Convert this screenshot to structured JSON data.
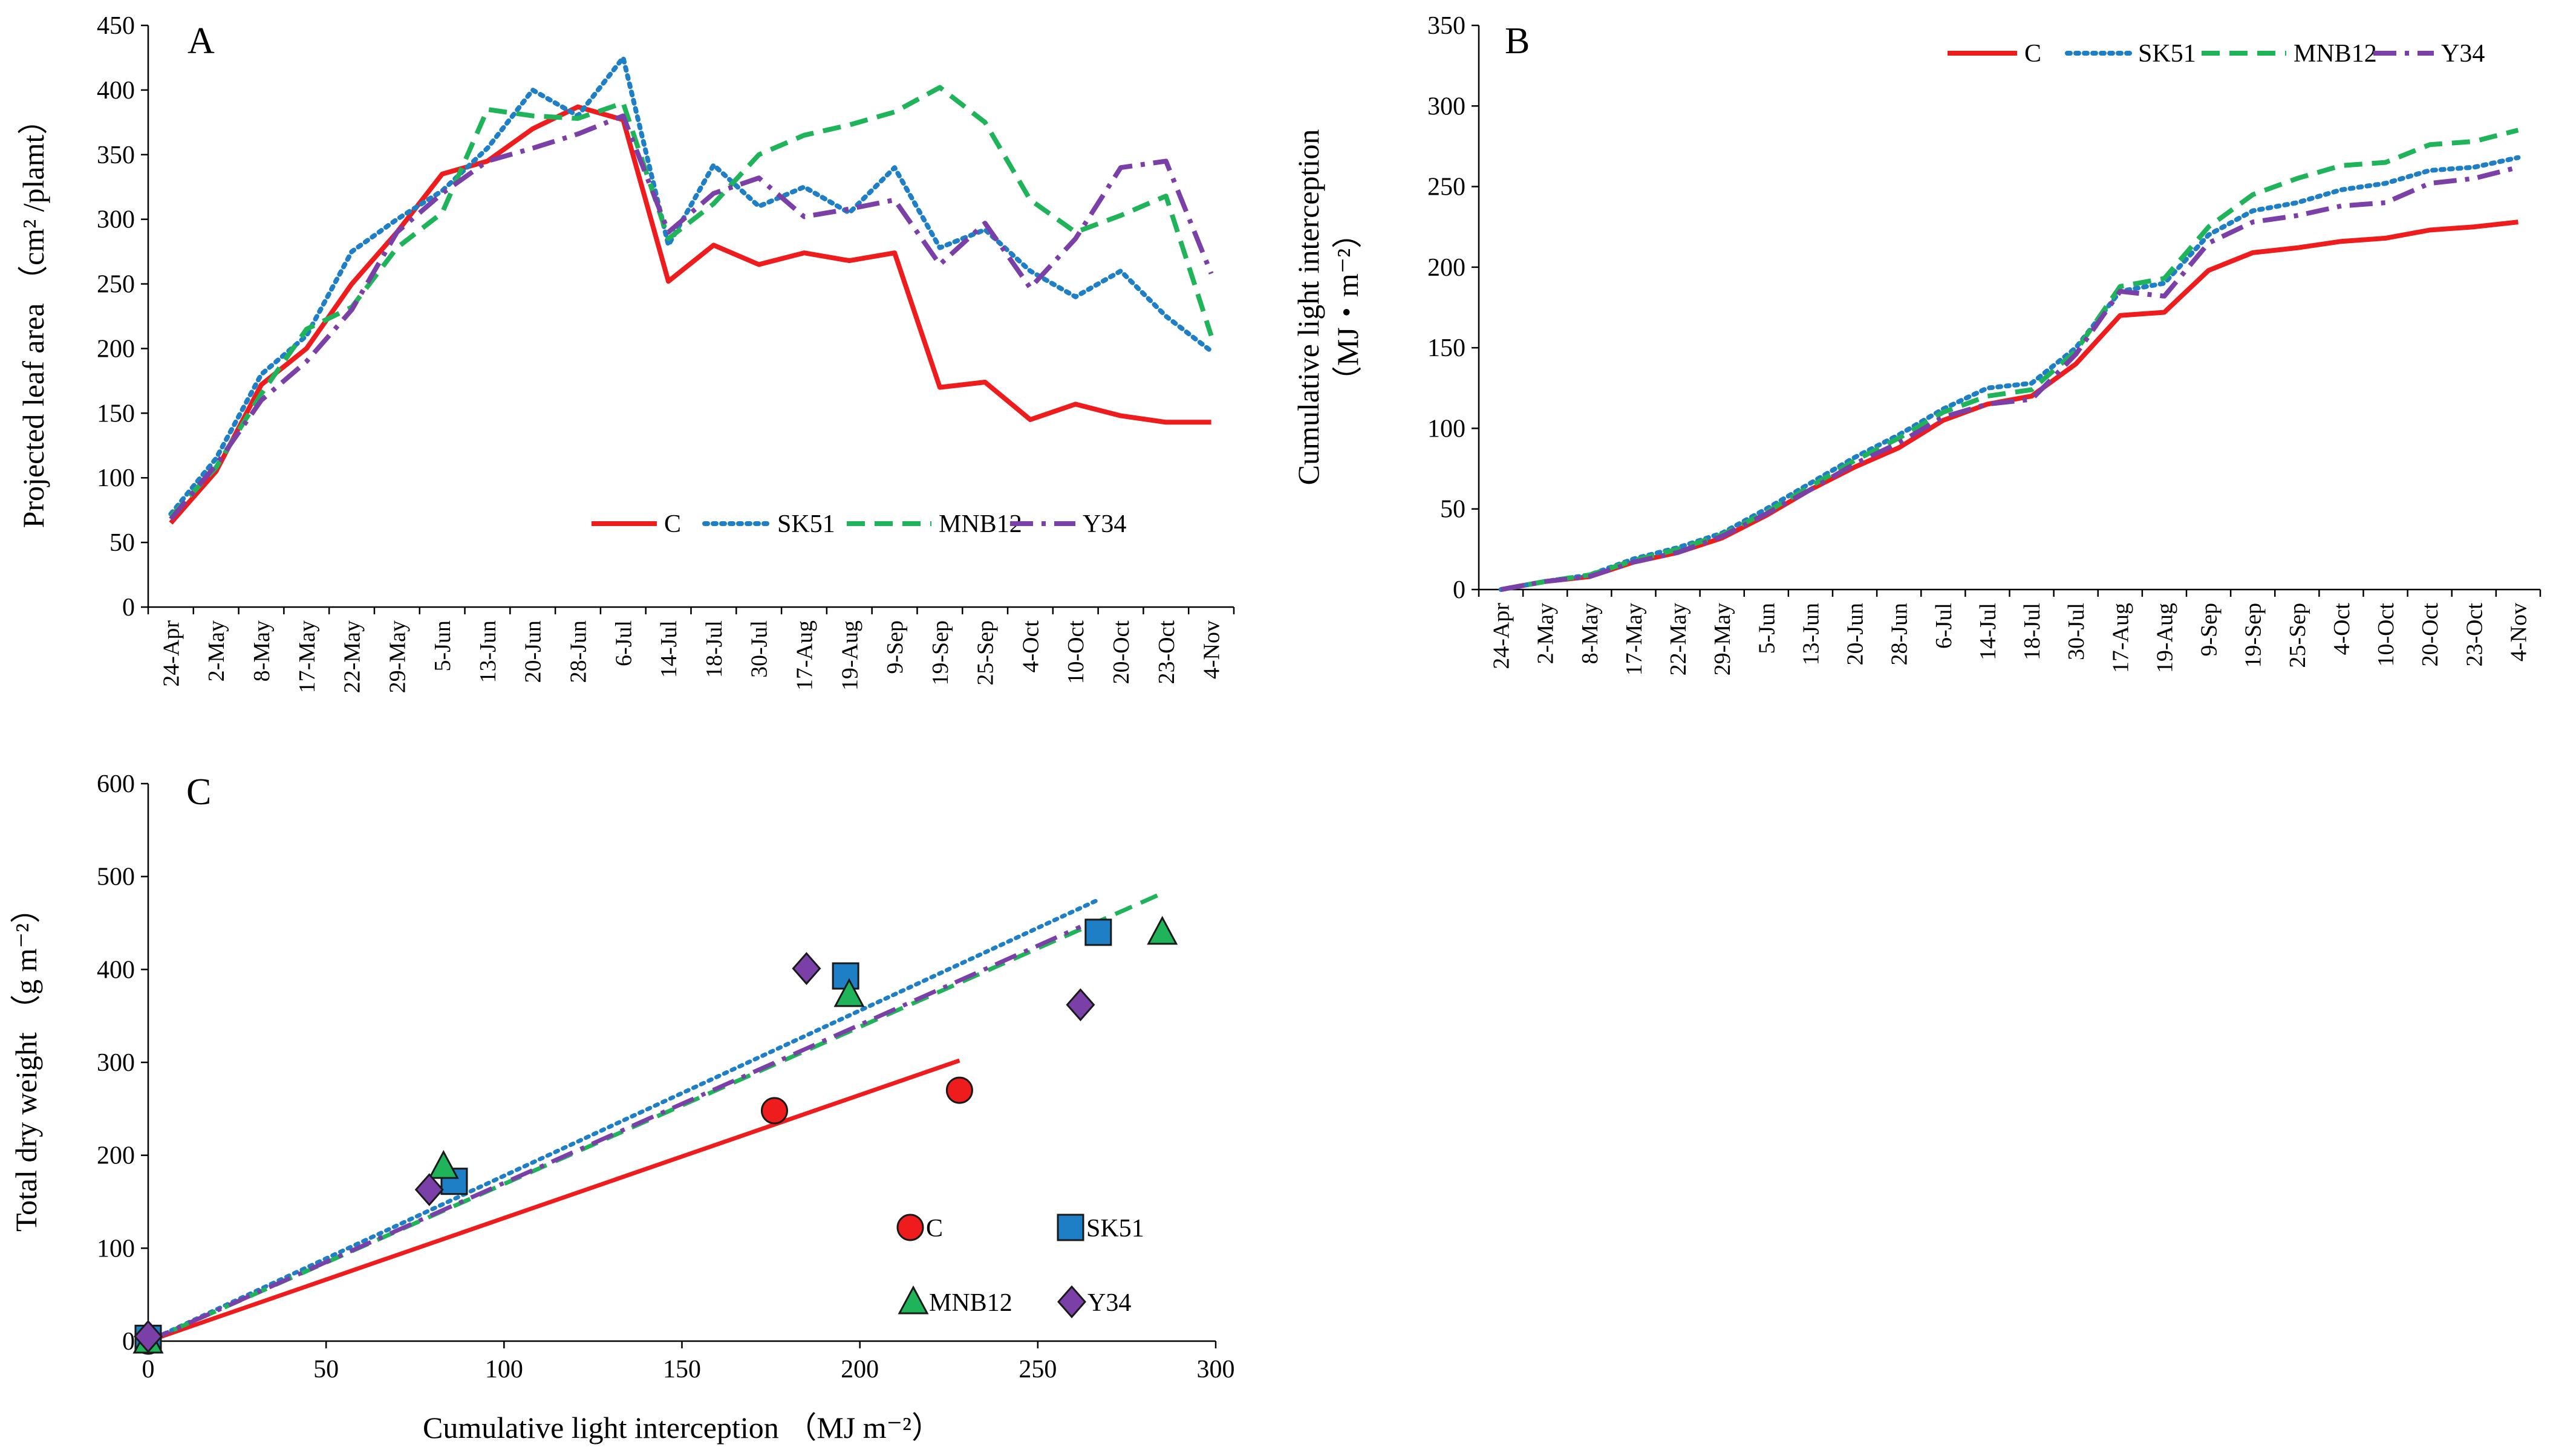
{
  "figure": {
    "colors": {
      "C": "#ee1c1c",
      "SK51": "#1f7fc6",
      "MNB12": "#1fb45a",
      "Y34": "#7b3fa8"
    }
  },
  "chart_data": [
    {
      "panel": "A",
      "type": "line",
      "title": "A",
      "xlabel": "",
      "ylabel": "Projected leaf area （cm² /plamt）",
      "ylim": [
        0,
        450
      ],
      "yticks": [
        0,
        50,
        100,
        150,
        200,
        250,
        300,
        350,
        400,
        450
      ],
      "categories": [
        "24-Apr",
        "2-May",
        "8-May",
        "17-May",
        "22-May",
        "29-May",
        "5-Jun",
        "13-Jun",
        "20-Jun",
        "28-Jun",
        "6-Jul",
        "14-Jul",
        "18-Jul",
        "30-Jul",
        "17-Aug",
        "19-Aug",
        "9-Sep",
        "19-Sep",
        "25-Sep",
        "4-Oct",
        "10-Oct",
        "20-Oct",
        "23-Oct",
        "4-Nov"
      ],
      "legend": "bottom-right",
      "series": [
        {
          "name": "C",
          "style": "solid",
          "values": [
            65,
            105,
            172,
            200,
            250,
            290,
            335,
            345,
            370,
            387,
            377,
            252,
            280,
            265,
            274,
            268,
            274,
            170,
            174,
            145,
            157,
            148,
            143,
            143
          ]
        },
        {
          "name": "SK51",
          "style": "dotted",
          "values": [
            72,
            115,
            180,
            210,
            275,
            300,
            322,
            355,
            400,
            380,
            425,
            280,
            342,
            310,
            325,
            305,
            340,
            278,
            292,
            260,
            240,
            260,
            225,
            198
          ]
        },
        {
          "name": "MNB12",
          "style": "dashed",
          "values": [
            70,
            108,
            165,
            215,
            232,
            278,
            305,
            385,
            380,
            378,
            390,
            285,
            312,
            350,
            365,
            373,
            383,
            402,
            375,
            315,
            290,
            303,
            318,
            210
          ]
        },
        {
          "name": "Y34",
          "style": "dashdot",
          "values": [
            68,
            110,
            160,
            190,
            230,
            290,
            320,
            345,
            355,
            366,
            380,
            290,
            320,
            332,
            302,
            308,
            315,
            265,
            297,
            247,
            285,
            340,
            345,
            258
          ]
        }
      ]
    },
    {
      "panel": "B",
      "type": "line",
      "title": "B",
      "xlabel": "",
      "ylabel_line1": "Cumulative light interception",
      "ylabel_line2": "（MJ・m⁻²）",
      "ylim": [
        0,
        350
      ],
      "yticks": [
        0,
        50,
        100,
        150,
        200,
        250,
        300,
        350
      ],
      "categories": [
        "24-Apr",
        "2-May",
        "8-May",
        "17-May",
        "22-May",
        "29-May",
        "5-Jun",
        "13-Jun",
        "20-Jun",
        "28-Jun",
        "6-Jul",
        "14-Jul",
        "18-Jul",
        "30-Jul",
        "17-Aug",
        "19-Aug",
        "9-Sep",
        "19-Sep",
        "25-Sep",
        "4-Oct",
        "10-Oct",
        "20-Oct",
        "23-Oct",
        "4-Nov"
      ],
      "legend": "top-right",
      "series": [
        {
          "name": "C",
          "style": "solid",
          "values": [
            0,
            5,
            8,
            17,
            23,
            32,
            46,
            62,
            76,
            88,
            105,
            115,
            120,
            140,
            170,
            172,
            198,
            209,
            212,
            216,
            218,
            223,
            225,
            228
          ]
        },
        {
          "name": "SK51",
          "style": "dotted",
          "values": [
            0,
            5,
            9,
            19,
            26,
            35,
            50,
            66,
            82,
            96,
            112,
            125,
            128,
            150,
            185,
            190,
            220,
            235,
            240,
            248,
            252,
            260,
            262,
            268
          ]
        },
        {
          "name": "MNB12",
          "style": "dashed",
          "values": [
            0,
            5,
            9,
            18,
            25,
            34,
            48,
            64,
            80,
            94,
            110,
            120,
            124,
            148,
            188,
            193,
            225,
            245,
            255,
            263,
            265,
            276,
            278,
            285
          ]
        },
        {
          "name": "Y34",
          "style": "dashdot",
          "values": [
            0,
            5,
            8,
            17,
            23,
            33,
            47,
            62,
            78,
            91,
            107,
            115,
            118,
            146,
            185,
            182,
            215,
            228,
            232,
            238,
            240,
            252,
            255,
            262
          ]
        }
      ]
    },
    {
      "panel": "C",
      "type": "scatter",
      "title": "C",
      "xlabel": "Cumulative light interception （MJ m⁻²）",
      "ylabel": "Total dry weight （g m⁻²）",
      "xlim": [
        0,
        300
      ],
      "ylim": [
        0,
        600
      ],
      "xticks": [
        0,
        50,
        100,
        150,
        200,
        250,
        300
      ],
      "yticks": [
        0,
        100,
        200,
        300,
        400,
        500,
        600
      ],
      "legend": "bottom-right",
      "series": [
        {
          "name": "C",
          "marker": "circle",
          "points": [
            [
              0,
              0
            ],
            [
              176,
              248
            ],
            [
              228,
              270
            ]
          ],
          "fit": {
            "style": "solid",
            "x": [
              0,
              228
            ],
            "y": [
              0,
              302
            ]
          }
        },
        {
          "name": "SK51",
          "marker": "square",
          "points": [
            [
              0,
              3
            ],
            [
              86,
              172
            ],
            [
              196,
              393
            ],
            [
              267,
              440
            ]
          ],
          "fit": {
            "style": "dotted",
            "x": [
              0,
              267
            ],
            "y": [
              0,
              475
            ]
          }
        },
        {
          "name": "MNB12",
          "marker": "triangle",
          "points": [
            [
              0,
              0
            ],
            [
              83,
              188
            ],
            [
              197,
              373
            ],
            [
              285,
              440
            ]
          ],
          "fit": {
            "style": "dashed",
            "x": [
              0,
              285
            ],
            "y": [
              0,
              482
            ]
          }
        },
        {
          "name": "Y34",
          "marker": "diamond",
          "points": [
            [
              0,
              5
            ],
            [
              79,
              163
            ],
            [
              185,
              401
            ],
            [
              262,
              362
            ]
          ],
          "fit": {
            "style": "dashdot",
            "x": [
              0,
              262
            ],
            "y": [
              0,
              446
            ]
          }
        }
      ]
    }
  ]
}
